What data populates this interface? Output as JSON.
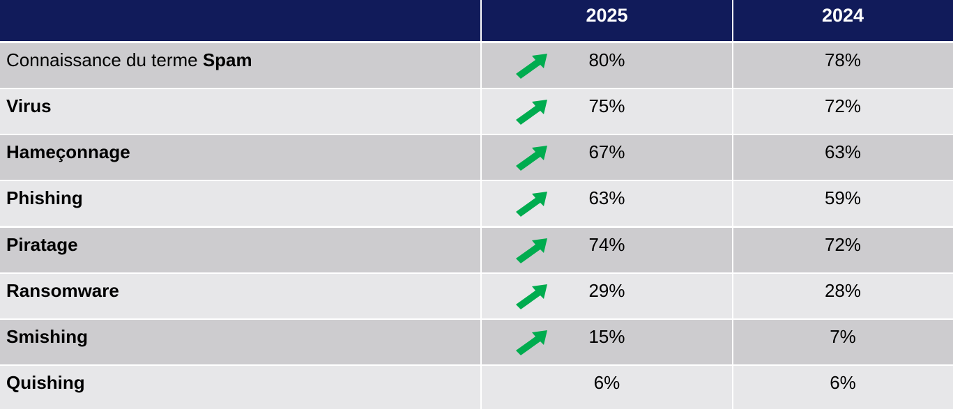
{
  "chart_data": {
    "type": "table",
    "columns": [
      "",
      "2025",
      "2024"
    ],
    "rows": [
      {
        "prefix": "Connaissance du terme ",
        "label": "Spam",
        "v2025": "80%",
        "v2024": "78%",
        "trend": "up"
      },
      {
        "prefix": "",
        "label": "Virus",
        "v2025": "75%",
        "v2024": "72%",
        "trend": "up"
      },
      {
        "prefix": "",
        "label": "Hameçonnage",
        "v2025": "67%",
        "v2024": "63%",
        "trend": "up"
      },
      {
        "prefix": "",
        "label": "Phishing",
        "v2025": "63%",
        "v2024": "59%",
        "trend": "up"
      },
      {
        "prefix": "",
        "label": "Piratage",
        "v2025": "74%",
        "v2024": "72%",
        "trend": "up"
      },
      {
        "prefix": "",
        "label": "Ransomware",
        "v2025": "29%",
        "v2024": "28%",
        "trend": "up"
      },
      {
        "prefix": "",
        "label": "Smishing",
        "v2025": "15%",
        "v2024": "7%",
        "trend": "up"
      },
      {
        "prefix": "",
        "label": "Quishing",
        "v2025": "6%",
        "v2024": "6%",
        "trend": "none"
      }
    ]
  },
  "colors": {
    "header": "#111b5a",
    "row_dark": "#cdcccf",
    "row_light": "#e7e7e9",
    "arrow_up": "#00ac4f"
  },
  "icons": {
    "trend_up": "green-arrow-up-right-icon"
  }
}
